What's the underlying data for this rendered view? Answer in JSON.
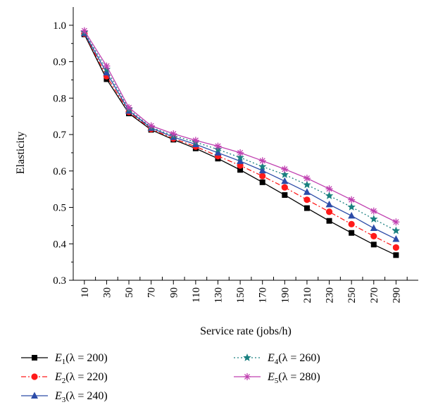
{
  "chart_data": {
    "type": "line",
    "xlabel": "Service rate (jobs/h)",
    "ylabel": "Elasticity",
    "categories": [
      10,
      30,
      50,
      70,
      90,
      110,
      130,
      150,
      170,
      190,
      210,
      230,
      250,
      270,
      290
    ],
    "xlim": [
      0,
      310
    ],
    "ylim": [
      0.3,
      1.05
    ],
    "yticks": [
      0.3,
      0.4,
      0.5,
      0.6,
      0.7,
      0.8,
      0.9,
      1.0
    ],
    "ytick_labels": [
      "0.3",
      "0.4",
      "0.5",
      "0.6",
      "0.7",
      "0.8",
      "0.9",
      "1.0"
    ],
    "grid": false,
    "legend_position": "bottom",
    "series": [
      {
        "label_main": "E",
        "label_sub": "1",
        "label_rest": "(λ = 200)",
        "color": "#000000",
        "dash": "",
        "marker": "square",
        "values": [
          0.975,
          0.852,
          0.758,
          0.713,
          0.686,
          0.662,
          0.634,
          0.603,
          0.569,
          0.534,
          0.498,
          0.463,
          0.43,
          0.398,
          0.369
        ]
      },
      {
        "label_main": "E",
        "label_sub": "2",
        "label_rest": "(λ = 220)",
        "color": "#ff1a1a",
        "dash": "7,3,2,3",
        "marker": "circle",
        "values": [
          0.977,
          0.86,
          0.762,
          0.715,
          0.689,
          0.667,
          0.641,
          0.615,
          0.586,
          0.555,
          0.521,
          0.488,
          0.454,
          0.421,
          0.39
        ]
      },
      {
        "label_main": "E",
        "label_sub": "3",
        "label_rest": "(λ = 240)",
        "color": "#2c4ca8",
        "dash": "",
        "marker": "triangle",
        "values": [
          0.978,
          0.87,
          0.765,
          0.718,
          0.693,
          0.673,
          0.65,
          0.627,
          0.601,
          0.572,
          0.542,
          0.508,
          0.477,
          0.443,
          0.413
        ]
      },
      {
        "label_main": "E",
        "label_sub": "4",
        "label_rest": "(λ = 260)",
        "color": "#1a8080",
        "dash": "2,3",
        "marker": "star",
        "values": [
          0.981,
          0.879,
          0.769,
          0.72,
          0.697,
          0.679,
          0.659,
          0.637,
          0.612,
          0.59,
          0.562,
          0.532,
          0.501,
          0.468,
          0.436
        ]
      },
      {
        "label_main": "E",
        "label_sub": "5",
        "label_rest": "(λ = 280)",
        "color": "#c040b0",
        "dash": "",
        "marker": "asterisk",
        "values": [
          0.985,
          0.888,
          0.774,
          0.724,
          0.702,
          0.684,
          0.668,
          0.65,
          0.628,
          0.605,
          0.58,
          0.551,
          0.521,
          0.49,
          0.46
        ]
      }
    ]
  }
}
